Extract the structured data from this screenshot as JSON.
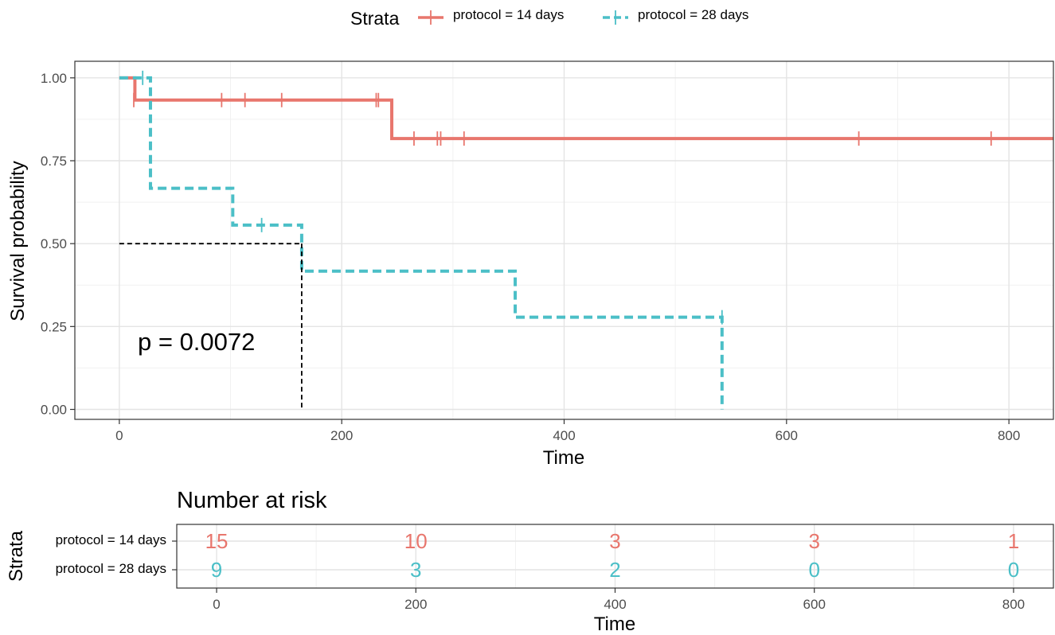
{
  "legend": {
    "title": "Strata",
    "items": [
      {
        "label": "protocol = 14 days",
        "color": "#e8766d"
      },
      {
        "label": "protocol = 28 days",
        "color": "#4bbfc7"
      }
    ]
  },
  "annotation": {
    "pvalue": "p = 0.0072"
  },
  "chart_data": [
    {
      "type": "line",
      "subtype": "kaplan-meier-survival",
      "xlabel": "Time",
      "ylabel": "Survival probability",
      "xlim": [
        -40,
        840
      ],
      "ylim": [
        -0.03,
        1.05
      ],
      "xticks": [
        0,
        200,
        400,
        600,
        800
      ],
      "xtick_labels": [
        "0",
        "200",
        "400",
        "600",
        "800"
      ],
      "yticks": [
        0,
        0.25,
        0.5,
        0.75,
        1.0
      ],
      "ytick_labels": [
        "0.00",
        "0.25",
        "0.50",
        "0.75",
        "1.00"
      ],
      "grid": true,
      "legend_position": "top",
      "series": [
        {
          "name": "protocol = 14 days",
          "color": "#e8766d",
          "dash": "solid",
          "steps": [
            [
              0,
              1.0
            ],
            [
              14,
              0.933
            ],
            [
              245,
              0.817
            ],
            [
              840,
              0.817
            ]
          ],
          "censored": [
            [
              13,
              0.933
            ],
            [
              92,
              0.933
            ],
            [
              113,
              0.933
            ],
            [
              146,
              0.933
            ],
            [
              231,
              0.933
            ],
            [
              233,
              0.933
            ],
            [
              265,
              0.817
            ],
            [
              286,
              0.817
            ],
            [
              289,
              0.817
            ],
            [
              310,
              0.817
            ],
            [
              665,
              0.817
            ],
            [
              784,
              0.817
            ]
          ]
        },
        {
          "name": "protocol = 28 days",
          "color": "#4bbfc7",
          "dash": "dashed",
          "steps": [
            [
              0,
              1.0
            ],
            [
              28,
              0.667
            ],
            [
              102,
              0.556
            ],
            [
              164,
              0.417
            ],
            [
              356,
              0.278
            ],
            [
              542,
              0.0
            ]
          ],
          "censored": [
            [
              21,
              1.0
            ],
            [
              128,
              0.556
            ],
            [
              542,
              0.278
            ]
          ]
        }
      ],
      "median_line": {
        "y": 0.5,
        "x": 164
      }
    },
    {
      "type": "table",
      "title": "Number at risk",
      "xlabel": "Time",
      "ylabel": "Strata",
      "xlim": [
        -40,
        840
      ],
      "xticks": [
        0,
        200,
        400,
        600,
        800
      ],
      "xtick_labels": [
        "0",
        "200",
        "400",
        "600",
        "800"
      ],
      "rows": [
        {
          "label": "protocol = 14 days",
          "color": "#e8766d",
          "values": [
            "15",
            "10",
            "3",
            "3",
            "1"
          ]
        },
        {
          "label": "protocol = 28 days",
          "color": "#4bbfc7",
          "values": [
            "9",
            "3",
            "2",
            "0",
            "0"
          ]
        }
      ]
    }
  ]
}
